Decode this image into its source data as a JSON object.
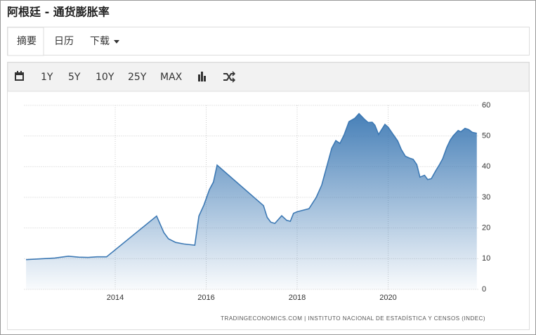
{
  "header": {
    "title": "阿根廷 - 通货膨胀率"
  },
  "tabs": [
    "摘要",
    "日历",
    "下载"
  ],
  "toolbar": {
    "items": [
      "1Y",
      "5Y",
      "10Y",
      "25Y",
      "MAX"
    ]
  },
  "chart_data": {
    "type": "area",
    "source": "TRADINGECONOMICS.COM | INSTITUTO NACIONAL DE ESTADÍSTICA Y CENSOS (INDEC)",
    "color": "#3d79b4",
    "x": [
      2012.04,
      2012.67,
      2012.97,
      2013.2,
      2013.4,
      2013.6,
      2013.81,
      2014.91,
      2015.07,
      2015.17,
      2015.33,
      2015.51,
      2015.75,
      2015.84,
      2015.95,
      2016.07,
      2016.16,
      2016.24,
      2017.26,
      2017.34,
      2017.42,
      2017.51,
      2017.66,
      2017.77,
      2017.85,
      2017.92,
      2018.0,
      2018.26,
      2018.42,
      2018.54,
      2018.65,
      2018.76,
      2018.85,
      2018.94,
      2019.03,
      2019.14,
      2019.27,
      2019.36,
      2019.47,
      2019.56,
      2019.65,
      2019.71,
      2019.79,
      2019.93,
      2020.0,
      2020.12,
      2020.21,
      2020.29,
      2020.38,
      2020.47,
      2020.55,
      2020.63,
      2020.7,
      2020.8,
      2020.87,
      2020.95,
      2021.04,
      2021.13,
      2021.2,
      2021.29,
      2021.37,
      2021.44,
      2021.54,
      2021.6,
      2021.69,
      2021.77,
      2021.85,
      2021.95
    ],
    "values": [
      9.7,
      10.2,
      10.8,
      10.5,
      10.4,
      10.6,
      10.6,
      23.9,
      18.5,
      16.5,
      15.3,
      14.8,
      14.4,
      23.9,
      27.5,
      32.5,
      35.0,
      40.5,
      27.3,
      23.5,
      21.9,
      21.5,
      24.0,
      22.5,
      22.2,
      24.8,
      25.3,
      26.3,
      30.0,
      34.0,
      40.0,
      46.0,
      48.5,
      47.6,
      50.3,
      54.7,
      55.8,
      57.3,
      55.6,
      54.4,
      54.5,
      53.5,
      50.5,
      53.8,
      52.9,
      50.3,
      48.4,
      45.6,
      43.4,
      42.8,
      42.4,
      40.7,
      36.6,
      37.2,
      35.8,
      36.1,
      38.5,
      40.7,
      42.6,
      46.3,
      48.8,
      50.2,
      51.8,
      51.4,
      52.5,
      52.1,
      51.2,
      50.9
    ],
    "xlim": [
      2012,
      2022
    ],
    "xticks": [
      2014,
      2016,
      2018,
      2020
    ],
    "ylim": [
      0,
      60
    ],
    "yticks": [
      0,
      10,
      20,
      30,
      40,
      50,
      60
    ],
    "grid": true
  }
}
